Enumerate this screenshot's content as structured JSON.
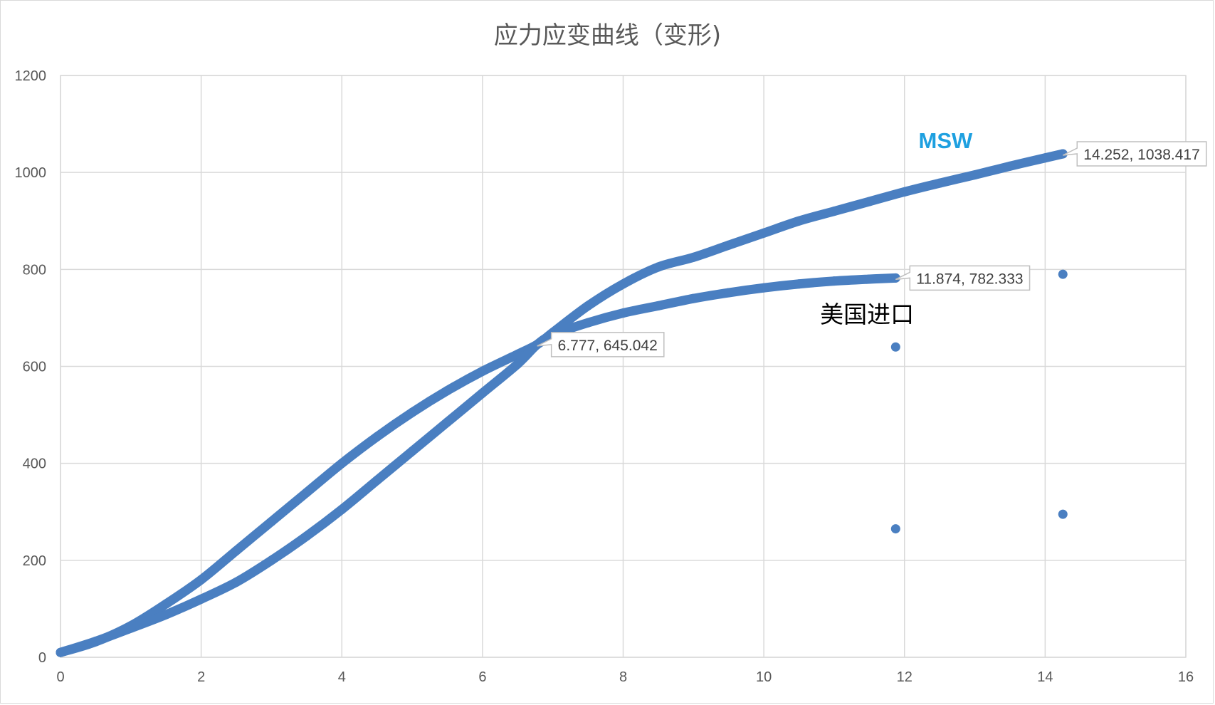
{
  "chart_data": {
    "type": "scatter",
    "title": "应力应变曲线（变形)",
    "xlim": [
      0,
      16
    ],
    "ylim": [
      0,
      1200
    ],
    "x_ticks": [
      0,
      2,
      4,
      6,
      8,
      10,
      12,
      14,
      16
    ],
    "y_ticks": [
      0,
      200,
      400,
      600,
      800,
      1000,
      1200
    ],
    "grid": true,
    "series_color": "#4a7fc1",
    "series": [
      {
        "x": [
          0,
          0.5,
          1,
          1.5,
          2,
          2.5,
          3,
          3.5,
          4,
          4.5,
          5,
          5.5,
          6,
          6.5,
          6.777,
          7,
          7.5,
          8,
          8.5,
          9,
          9.5,
          10,
          10.5,
          11,
          11.5,
          12,
          12.5,
          13,
          13.5,
          14,
          14.252
        ],
        "y": [
          10,
          32,
          65,
          110,
          160,
          220,
          280,
          340,
          400,
          455,
          505,
          550,
          590,
          625,
          645.042,
          670,
          725,
          770,
          805,
          825,
          850,
          875,
          900,
          920,
          940,
          960,
          978,
          995,
          1013,
          1030,
          1038.417
        ]
      },
      {
        "x": [
          0,
          0.5,
          1,
          1.5,
          2,
          2.5,
          3,
          3.5,
          4,
          4.5,
          5,
          5.5,
          6,
          6.5,
          6.777,
          7,
          7.5,
          8,
          8.5,
          9,
          9.5,
          10,
          10.5,
          11,
          11.5,
          11.874
        ],
        "y": [
          10,
          33,
          60,
          88,
          120,
          155,
          200,
          250,
          305,
          365,
          425,
          485,
          545,
          605,
          645.042,
          665,
          690,
          710,
          725,
          740,
          752,
          762,
          770,
          776,
          780,
          782.333
        ]
      },
      {
        "x": [
          11.874,
          11.874,
          14.252,
          14.252
        ],
        "y": [
          640,
          265,
          790,
          295
        ]
      }
    ],
    "data_labels": [
      {
        "text": "14.252, 1038.417",
        "x": 14.252,
        "y": 1038.417
      },
      {
        "text": "11.874, 782.333",
        "x": 11.874,
        "y": 782.333
      },
      {
        "text": "6.777, 645.042",
        "x": 6.777,
        "y": 645.042
      }
    ],
    "annotations": [
      {
        "text": "MSW",
        "x": 12.2,
        "y": 1050,
        "color": "#1ea0e0"
      },
      {
        "text": "美国进口",
        "x": 10.8,
        "y": 690,
        "color": "#000000"
      }
    ]
  }
}
